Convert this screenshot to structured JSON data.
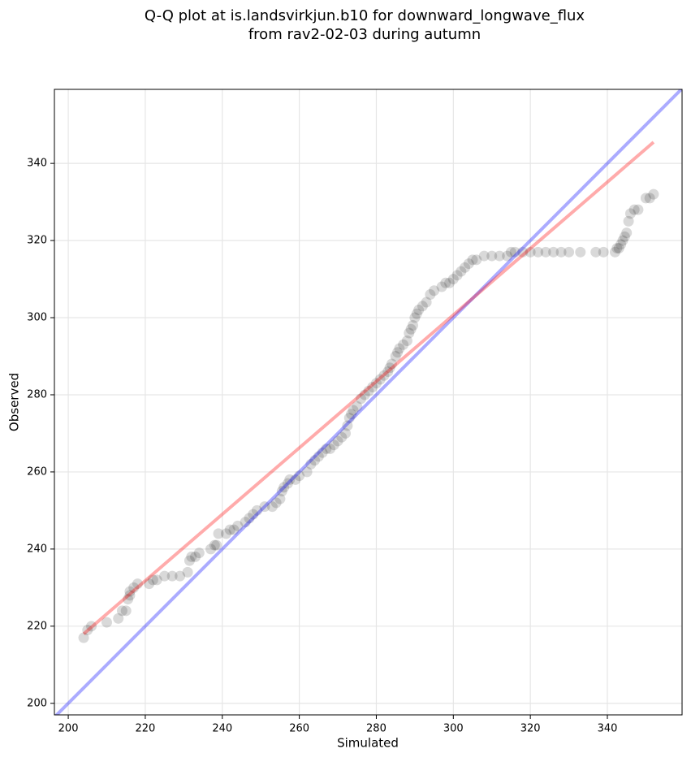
{
  "chart_data": {
    "type": "scatter",
    "title": "Q-Q plot at is.landsvirkjun.b10 for downward_longwave_flux",
    "subtitle": "from rav2-02-03 during autumn",
    "x_label": "Simulated",
    "y_label": "Observed",
    "xlim": [
      196.4,
      359.4
    ],
    "ylim": [
      197,
      359.2
    ],
    "xticks": [
      200,
      220,
      240,
      260,
      280,
      300,
      320,
      340
    ],
    "yticks": [
      200,
      220,
      240,
      260,
      280,
      300,
      320,
      340
    ],
    "grid": true,
    "color": "#000000",
    "x": [
      204,
      205,
      206,
      210,
      213,
      214,
      215,
      215.5,
      216,
      216,
      217,
      218,
      221,
      222,
      223,
      225,
      227,
      229,
      231,
      231.5,
      232,
      233,
      234,
      237,
      238,
      238.5,
      239,
      241,
      242,
      243,
      244,
      246,
      247,
      248,
      249,
      251,
      253,
      254,
      255,
      255.5,
      256,
      257,
      257.5,
      259,
      260,
      262,
      263,
      264,
      265,
      266,
      267,
      268,
      269,
      270,
      271,
      272,
      272.5,
      273,
      273.5,
      274,
      275,
      276,
      277,
      278,
      279,
      280,
      281,
      282,
      283,
      283.5,
      284,
      285,
      285.5,
      286,
      287,
      288,
      288.5,
      289,
      289.5,
      290,
      290.5,
      291,
      292,
      293,
      294,
      295,
      297,
      298,
      299,
      300,
      301,
      302,
      303,
      304,
      305,
      306,
      308,
      310,
      312,
      314,
      315,
      316,
      318,
      320,
      322,
      324,
      326,
      328,
      330,
      333,
      337,
      339,
      342,
      342.5,
      343,
      343.5,
      344,
      344.5,
      345,
      345.5,
      346,
      347,
      348,
      350,
      351,
      352
    ],
    "values": [
      217,
      219,
      220,
      221,
      222,
      224,
      224,
      227,
      228,
      229,
      230,
      231,
      231,
      232,
      232,
      233,
      233,
      233,
      234,
      237,
      238,
      238,
      239,
      240,
      241,
      241,
      244,
      244,
      245,
      245,
      246,
      247,
      248,
      249,
      250,
      251,
      251,
      252,
      253,
      255,
      256,
      257,
      258,
      258,
      259,
      260,
      262,
      263,
      264,
      265,
      266,
      266,
      267,
      268,
      269,
      270,
      272,
      274,
      275,
      276,
      277,
      279,
      280,
      281,
      282,
      283,
      284,
      285,
      286,
      287,
      288,
      290,
      291,
      292,
      293,
      294,
      296,
      297,
      298,
      300,
      301,
      302,
      303,
      304,
      306,
      307,
      308,
      309,
      309,
      310,
      311,
      312,
      313,
      314,
      315,
      315,
      316,
      316,
      316,
      316,
      317,
      317,
      317,
      317,
      317,
      317,
      317,
      317,
      317,
      317,
      317,
      317,
      317,
      318,
      318,
      319,
      320,
      321,
      322,
      325,
      327,
      328,
      328,
      331,
      331,
      332
    ],
    "lines": [
      {
        "x": [
          196.4,
          359.4
        ],
        "values": [
          196.4,
          359.4
        ],
        "color": "#0000ff"
      },
      {
        "x": [
          204,
          352
        ],
        "values": [
          218,
          345.5
        ],
        "color": "#ff0000"
      }
    ]
  }
}
